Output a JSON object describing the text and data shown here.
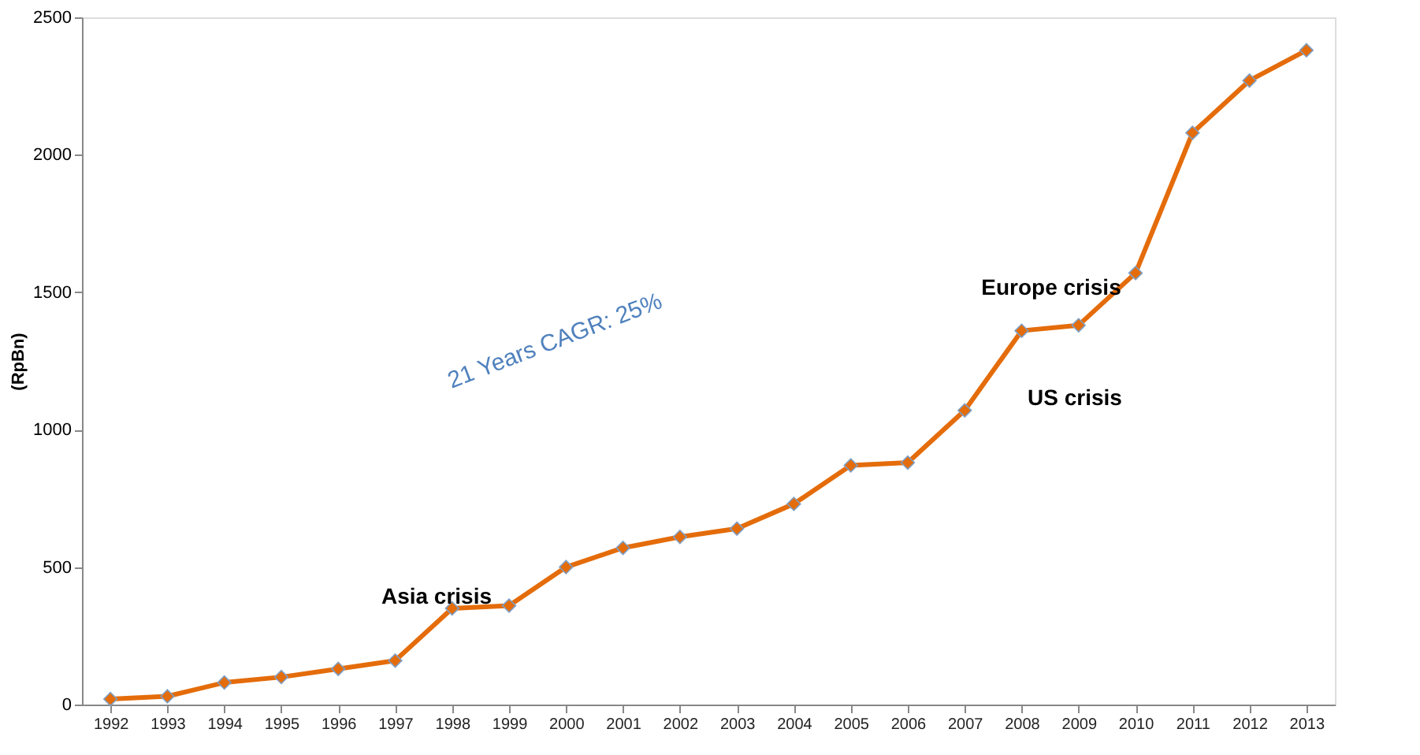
{
  "chart_data": {
    "type": "line",
    "ylabel": "(RpBn)",
    "categories": [
      "1992",
      "1993",
      "1994",
      "1995",
      "1996",
      "1997",
      "1998",
      "1999",
      "2000",
      "2001",
      "2002",
      "2003",
      "2004",
      "2005",
      "2006",
      "2007",
      "2008",
      "2009",
      "2010",
      "2011",
      "2012",
      "2013"
    ],
    "series": [
      {
        "color": "#e46c0a",
        "values": [
          20,
          30,
          80,
          100,
          130,
          160,
          350,
          360,
          500,
          570,
          610,
          640,
          730,
          870,
          880,
          1070,
          1360,
          1380,
          1570,
          2080,
          2270,
          2380
        ]
      }
    ],
    "ylim": [
      0,
      2500
    ],
    "yticks": [
      0,
      500,
      1000,
      1500,
      2000,
      2500
    ],
    "grid": false,
    "marker": "diamond",
    "line_style": "solid",
    "annotations": [
      "21 Years CAGR: 25%",
      "Asia crisis",
      "Europe crisis",
      "US crisis"
    ]
  }
}
